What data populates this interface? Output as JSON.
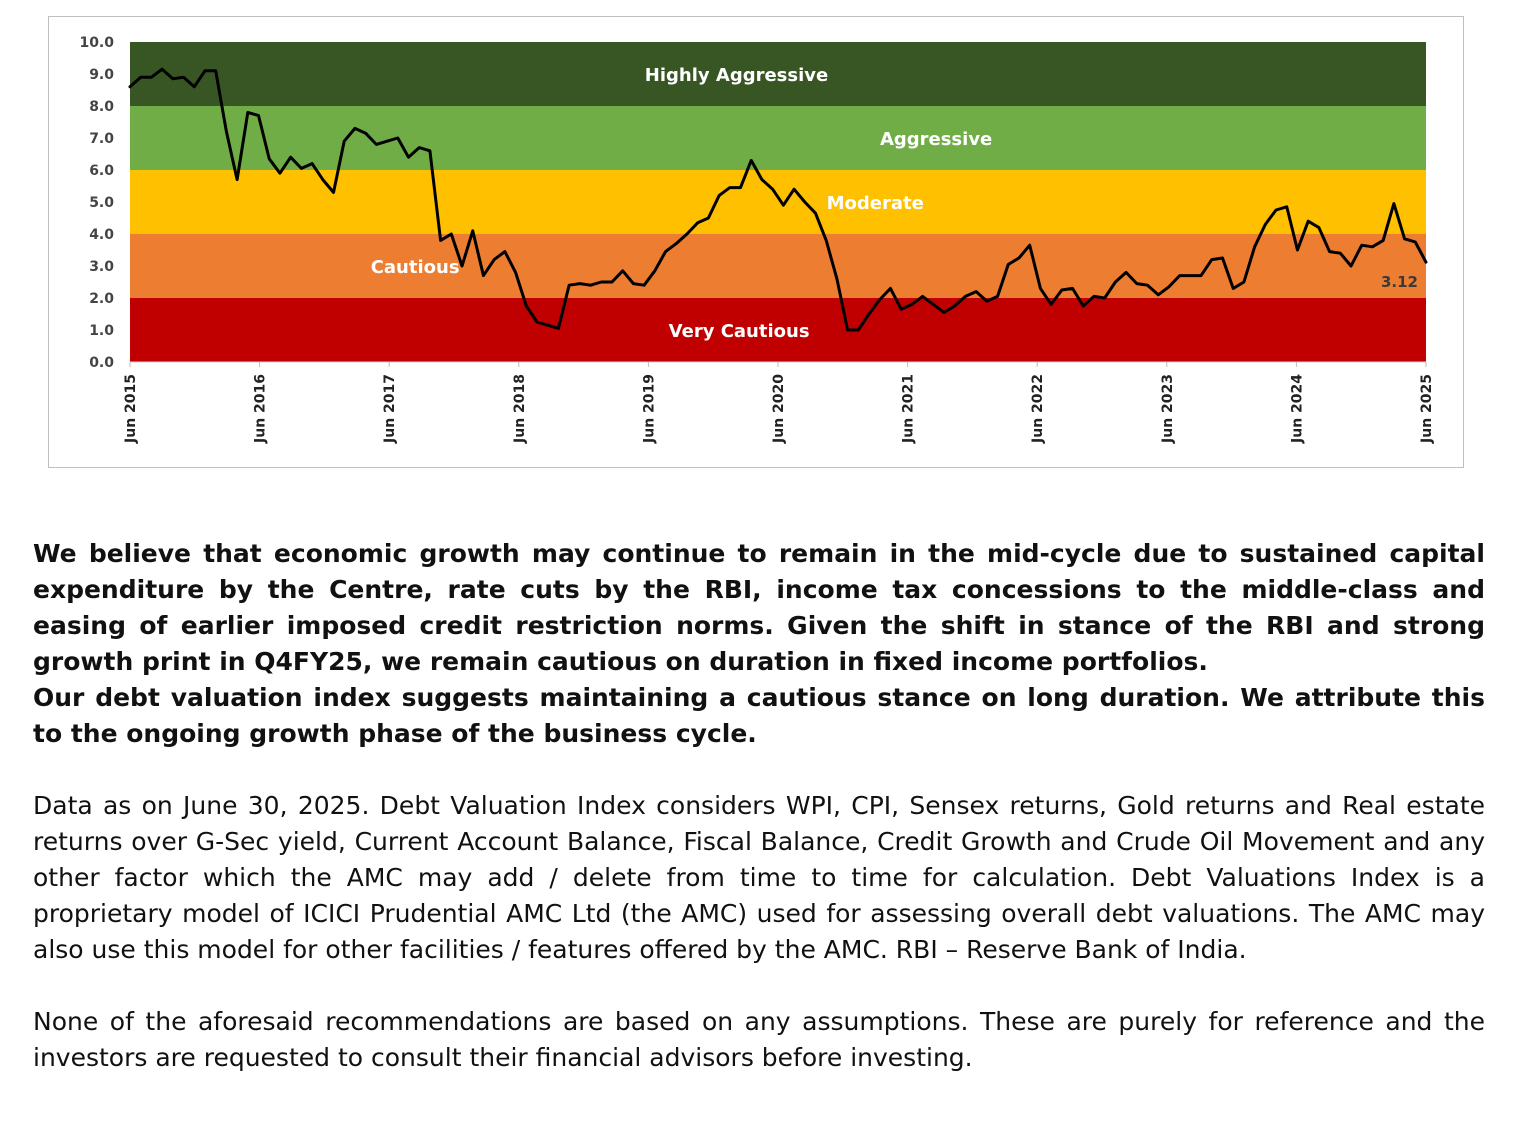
{
  "chart_data": {
    "type": "line",
    "title": "",
    "xlabel": "",
    "ylabel": "",
    "ylim": [
      0,
      10
    ],
    "yticks": [
      "0.0",
      "1.0",
      "2.0",
      "3.0",
      "4.0",
      "5.0",
      "6.0",
      "7.0",
      "8.0",
      "9.0",
      "10.0"
    ],
    "x_start": "Jun 2015",
    "x_end": "Jun 2025",
    "xticks": [
      "Jun 2015",
      "Jun 2016",
      "Jun 2017",
      "Jun 2018",
      "Jun 2019",
      "Jun 2020",
      "Jun 2021",
      "Jun 2022",
      "Jun 2023",
      "Jun 2024",
      "Jun 2025"
    ],
    "bands": [
      {
        "label": "Very Cautious",
        "from": 0,
        "to": 2,
        "color": "#c00000",
        "label_x": "Jun 2020"
      },
      {
        "label": "Cautious",
        "from": 2,
        "to": 4,
        "color": "#ed7d31",
        "label_x": "Jun 2017"
      },
      {
        "label": "Moderate",
        "from": 4,
        "to": 6,
        "color": "#ffc000",
        "label_x": "Jun 2021"
      },
      {
        "label": "Aggressive",
        "from": 6,
        "to": 8,
        "color": "#70ad47",
        "label_x": "Jun 2022"
      },
      {
        "label": "Highly Aggressive",
        "from": 8,
        "to": 10,
        "color": "#375623",
        "label_x": "Jun 2020"
      }
    ],
    "series": [
      {
        "color": "#000000",
        "values": [
          8.6,
          8.9,
          8.9,
          9.15,
          8.85,
          8.9,
          8.6,
          9.1,
          9.1,
          7.2,
          5.7,
          7.8,
          7.7,
          6.35,
          5.9,
          6.4,
          6.05,
          6.2,
          5.7,
          5.3,
          6.9,
          7.3,
          7.15,
          6.8,
          6.9,
          7.0,
          6.4,
          6.7,
          6.6,
          3.8,
          4.0,
          3.0,
          4.1,
          2.7,
          3.2,
          3.45,
          2.8,
          1.75,
          1.25,
          1.15,
          1.05,
          2.4,
          2.45,
          2.4,
          2.5,
          2.5,
          2.85,
          2.45,
          2.4,
          2.85,
          3.45,
          3.7,
          4.0,
          4.35,
          4.5,
          5.2,
          5.45,
          5.45,
          6.3,
          5.7,
          5.4,
          4.9,
          5.4,
          5.0,
          4.65,
          3.8,
          2.6,
          1.0,
          1.0,
          1.5,
          1.95,
          2.3,
          1.65,
          1.8,
          2.05,
          1.8,
          1.55,
          1.75,
          2.05,
          2.2,
          1.9,
          2.05,
          3.05,
          3.25,
          3.65,
          2.3,
          1.8,
          2.25,
          2.3,
          1.75,
          2.05,
          2.0,
          2.5,
          2.8,
          2.45,
          2.4,
          2.1,
          2.35,
          2.7,
          2.7,
          2.7,
          3.2,
          3.25,
          2.3,
          2.5,
          3.6,
          4.3,
          4.75,
          4.85,
          3.5,
          4.4,
          4.2,
          3.45,
          3.4,
          3.0,
          3.65,
          3.6,
          3.8,
          4.95,
          3.85,
          3.75,
          3.12
        ]
      }
    ],
    "last_value_label": "3.12",
    "grid": false,
    "legend": "none"
  },
  "text": {
    "bold_paragraph_1": "We believe that economic growth may continue to remain in the mid-cycle due to sustained capital expenditure by the Centre, rate cuts by the RBI, income tax concessions to the middle-class and easing of earlier imposed credit restriction norms. Given the shift in stance of the RBI and strong growth print in Q4FY25, we remain cautious on duration in fixed income portfolios.",
    "bold_paragraph_2": "Our debt valuation index suggests maintaining a cautious stance on long duration. We attribute this to the ongoing growth phase of the business cycle.",
    "paragraph_3": "Data as on June 30, 2025. Debt Valuation Index considers WPI, CPI, Sensex returns, Gold returns and Real estate returns over G-Sec yield, Current Account Balance, Fiscal Balance, Credit Growth and Crude Oil Movement and any other factor which the AMC may add / delete from time to time for calculation. Debt Valuations Index is a proprietary model of ICICI Prudential AMC Ltd (the AMC) used for assessing overall debt valuations. The AMC may also use this model for other facilities / features offered by the AMC. RBI – Reserve Bank of India.",
    "paragraph_4": "None of the aforesaid recommendations are based on any assumptions. These are purely for reference and the investors are requested to consult their financial advisors before investing."
  }
}
